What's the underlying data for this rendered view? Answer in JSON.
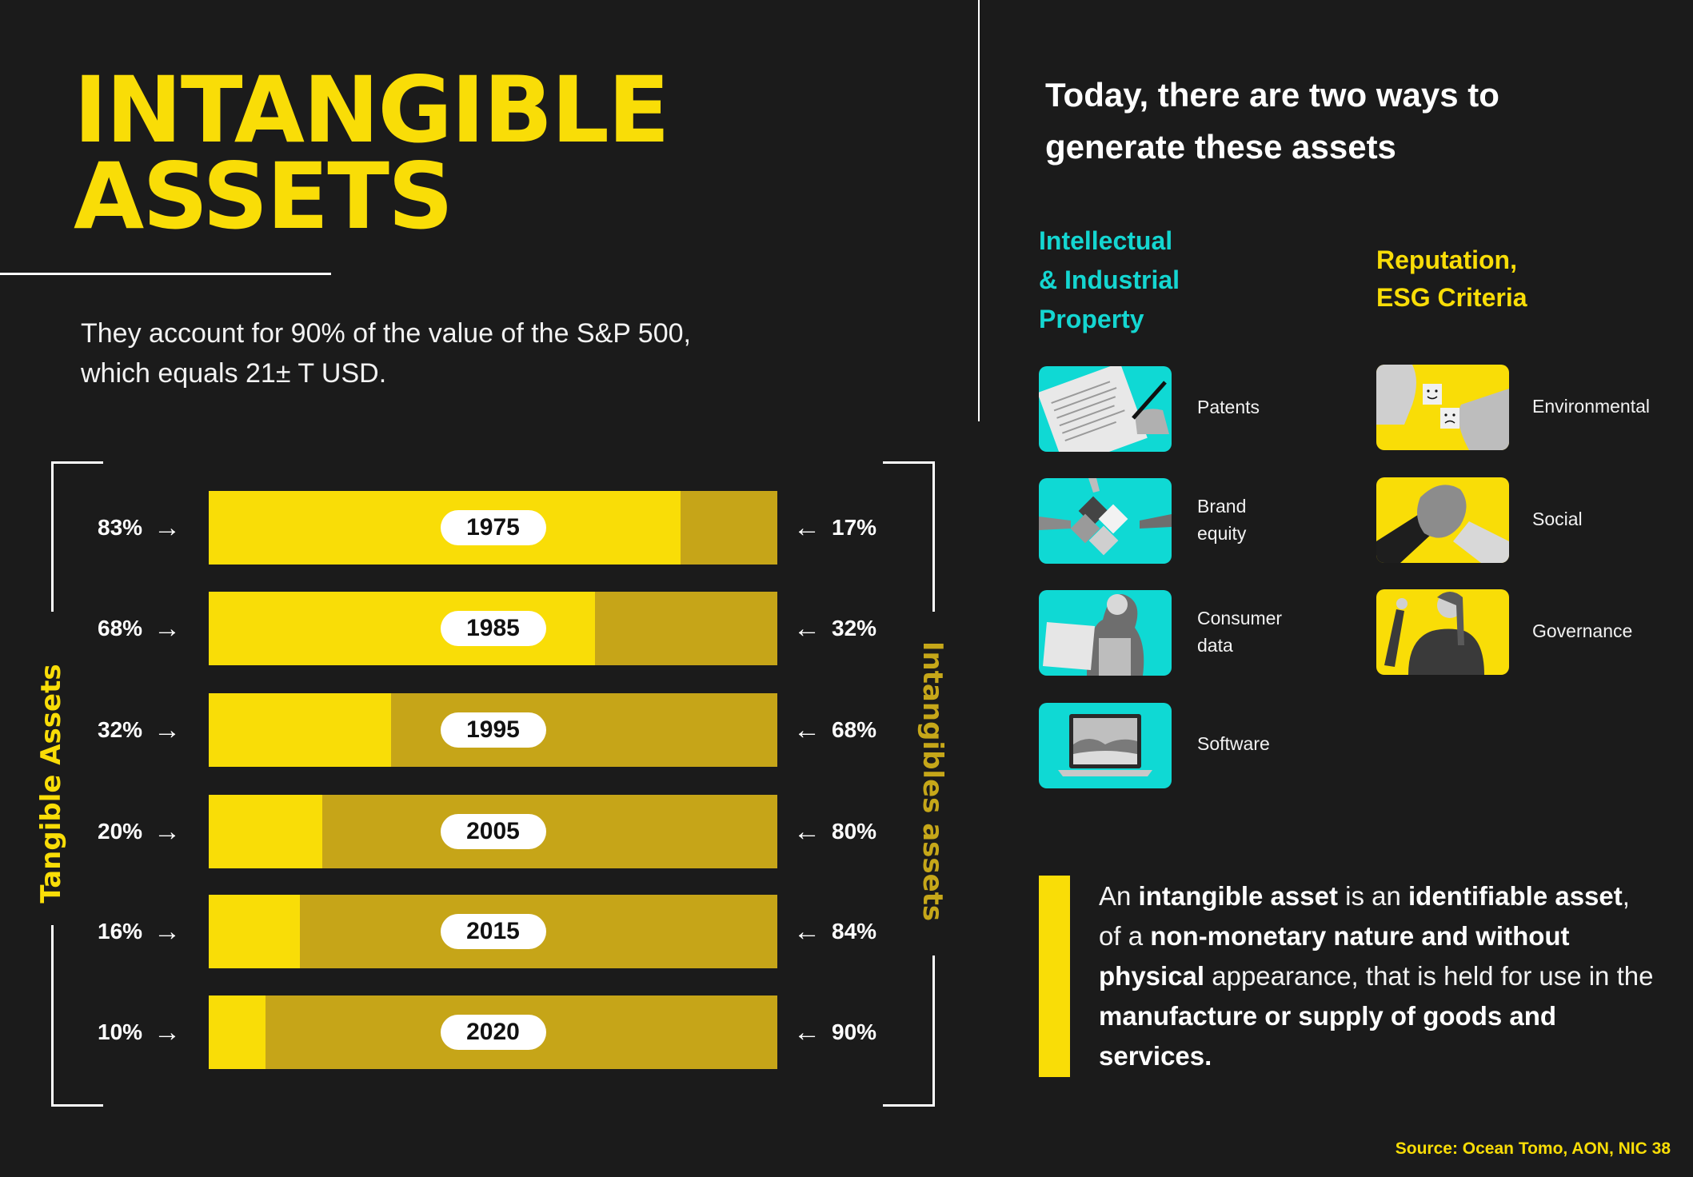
{
  "title": {
    "line1": "INTANGIBLE",
    "line2": "ASSETS"
  },
  "subtitle": {
    "line1": "They account for 90% of the value of the S&P 500,",
    "line2": "which equals 21± T USD."
  },
  "chart_data": {
    "type": "bar",
    "orientation": "horizontal-stacked-100",
    "title": "Tangible vs Intangible Assets share of S&P 500 value",
    "categories": [
      "1975",
      "1985",
      "1995",
      "2005",
      "2015",
      "2020"
    ],
    "series": [
      {
        "name": "Tangible Assets",
        "color": "#f9dd07",
        "values": [
          83,
          68,
          32,
          20,
          16,
          10
        ]
      },
      {
        "name": "Intangibles assets",
        "color": "#c6a518",
        "values": [
          17,
          32,
          68,
          80,
          84,
          90
        ]
      }
    ],
    "xlabel": "",
    "ylabel_left": "Tangible Assets",
    "ylabel_right": "Intangibles assets",
    "unit": "%",
    "xlim": [
      0,
      100
    ],
    "grid": false,
    "legend": "side labels (left: Tangible Assets, right: Intangibles assets)"
  },
  "bars": [
    {
      "year": "1975",
      "tangible": 83,
      "intangible": 17,
      "tangible_label": "83%",
      "intangible_label": "17%"
    },
    {
      "year": "1985",
      "tangible": 68,
      "intangible": 32,
      "tangible_label": "68%",
      "intangible_label": "32%"
    },
    {
      "year": "1995",
      "tangible": 32,
      "intangible": 68,
      "tangible_label": "32%",
      "intangible_label": "68%"
    },
    {
      "year": "2005",
      "tangible": 20,
      "intangible": 80,
      "tangible_label": "20%",
      "intangible_label": "80%"
    },
    {
      "year": "2015",
      "tangible": 16,
      "intangible": 84,
      "tangible_label": "16%",
      "intangible_label": "84%"
    },
    {
      "year": "2020",
      "tangible": 10,
      "intangible": 90,
      "tangible_label": "10%",
      "intangible_label": "90%"
    }
  ],
  "axis_labels": {
    "left": "Tangible Assets",
    "right": "Intangibles assets"
  },
  "arrows": {
    "right": "→",
    "left": "←"
  },
  "right_heading": {
    "line1": "Today, there are two ways to",
    "line2": "generate these assets"
  },
  "categories": [
    {
      "title_lines": [
        "Intellectual",
        "& Industrial",
        "Property"
      ],
      "color": "#14d6d1",
      "items": [
        {
          "label_lines": [
            "Patents"
          ],
          "icon": "patent-document-icon"
        },
        {
          "label_lines": [
            "Brand",
            "equity"
          ],
          "icon": "puzzle-pieces-icon"
        },
        {
          "label_lines": [
            "Consumer",
            "data"
          ],
          "icon": "person-laptop-icon"
        },
        {
          "label_lines": [
            "Software"
          ],
          "icon": "laptop-icon"
        }
      ]
    },
    {
      "title_lines": [
        "Reputation,",
        "ESG Criteria"
      ],
      "color": "#f9dd07",
      "items": [
        {
          "label_lines": [
            "Environmental"
          ],
          "icon": "smiley-blocks-icon"
        },
        {
          "label_lines": [
            "Social"
          ],
          "icon": "handshake-icon"
        },
        {
          "label_lines": [
            "Governance"
          ],
          "icon": "person-pointing-icon"
        }
      ]
    }
  ],
  "definition": {
    "segments": [
      {
        "text": "An ",
        "bold": false
      },
      {
        "text": "intangible asset",
        "bold": true
      },
      {
        "text": " is an ",
        "bold": false
      },
      {
        "text": "identifiable asset",
        "bold": true
      },
      {
        "text": ", of a ",
        "bold": false
      },
      {
        "text": "non-monetary nature and without physical",
        "bold": true
      },
      {
        "text": " appearance, that is held for use in the ",
        "bold": false
      },
      {
        "text": "manufacture or supply of goods and services.",
        "bold": true
      }
    ]
  },
  "source": "Source: Ocean Tomo, AON, NIC 38",
  "colors": {
    "background": "#1b1b1b",
    "yellow": "#f9dd07",
    "gold": "#c6a518",
    "cyan": "#14d6d1",
    "white": "#ffffff"
  }
}
